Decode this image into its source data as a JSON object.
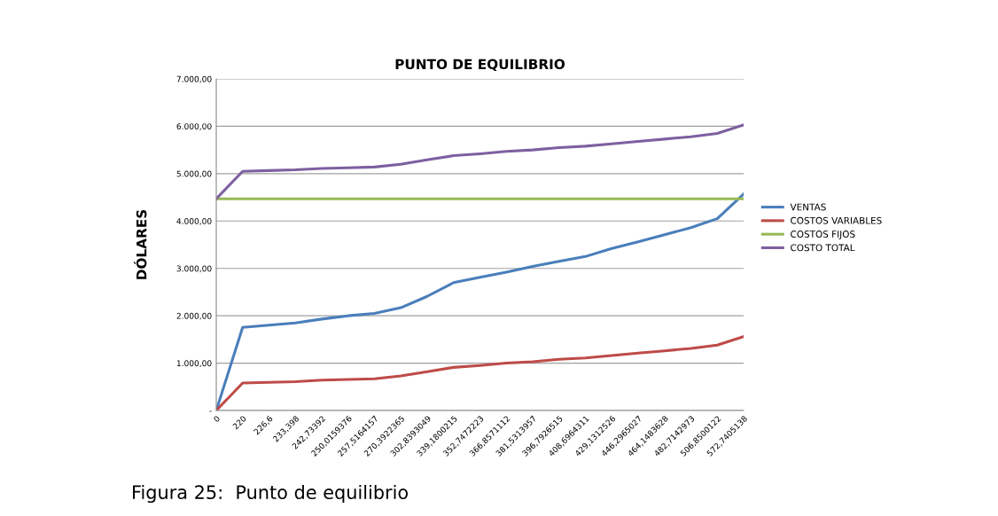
{
  "chart_data": {
    "type": "line",
    "title": "PUNTO DE EQUILIBRIO",
    "ylabel": "DÓLARES",
    "categories": [
      "0",
      "220",
      "226,6",
      "233,398",
      "242,73392",
      "250,0159376",
      "257,5164157",
      "270,3922365",
      "302,8393049",
      "339,1800215",
      "352,7472223",
      "366,8571112",
      "381,5313957",
      "396,7926515",
      "408,6964311",
      "429,1312526",
      "446,2965027",
      "464,1483628",
      "482,7142973",
      "506,8500122",
      "572,7405138"
    ],
    "series": [
      {
        "name": "VENTAS",
        "color": "#4a7ebb",
        "values": [
          0,
          1755,
          1800,
          1850,
          1930,
          2000,
          2050,
          2170,
          2410,
          2700,
          2810,
          2920,
          3040,
          3150,
          3250,
          3420,
          3560,
          3710,
          3860,
          4050,
          4570
        ]
      },
      {
        "name": "COSTOS VARIABLES",
        "color": "#be4b48",
        "values": [
          0,
          580,
          595,
          610,
          640,
          655,
          670,
          730,
          820,
          910,
          950,
          1000,
          1030,
          1080,
          1110,
          1160,
          1210,
          1260,
          1310,
          1380,
          1560
        ]
      },
      {
        "name": "COSTOS FIJOS",
        "color": "#98b954",
        "values": [
          4470,
          4470,
          4470,
          4470,
          4470,
          4470,
          4470,
          4470,
          4470,
          4470,
          4470,
          4470,
          4470,
          4470,
          4470,
          4470,
          4470,
          4470,
          4470,
          4470,
          4470
        ]
      },
      {
        "name": "COSTO TOTAL",
        "color": "#7d60a0",
        "values": [
          4470,
          5050,
          5065,
          5080,
          5110,
          5125,
          5140,
          5200,
          5290,
          5380,
          5420,
          5470,
          5500,
          5550,
          5580,
          5630,
          5680,
          5730,
          5780,
          5850,
          6030
        ]
      }
    ],
    "ylim": [
      0,
      7000
    ],
    "yticks": [
      {
        "value": 0,
        "label": "-"
      },
      {
        "value": 1000,
        "label": "1.000,00"
      },
      {
        "value": 2000,
        "label": "2.000,00"
      },
      {
        "value": 3000,
        "label": "3.000,00"
      },
      {
        "value": 4000,
        "label": "4.000,00"
      },
      {
        "value": 5000,
        "label": "5.000,00"
      },
      {
        "value": 6000,
        "label": "6.000,00"
      },
      {
        "value": 7000,
        "label": "7.000,00"
      }
    ],
    "grid": "y",
    "legend": "right",
    "marker": "none",
    "line_style": "solid",
    "annotations": [
      "Figura 25:  Punto de equilibrio"
    ]
  }
}
